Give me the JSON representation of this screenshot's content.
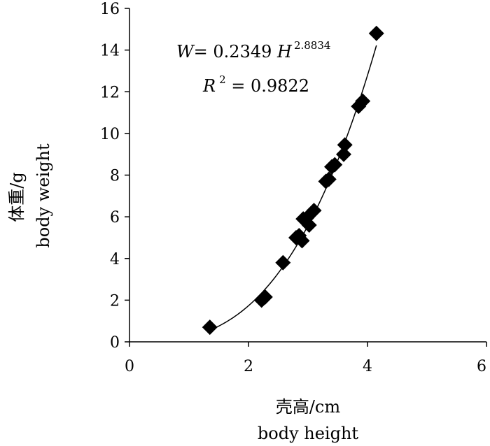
{
  "chart_data": {
    "type": "scatter",
    "xlabel": [
      "壳高/cm",
      "body height"
    ],
    "ylabel": [
      "体重/g",
      "body weight"
    ],
    "xlim": [
      0,
      6
    ],
    "ylim": [
      0,
      16
    ],
    "x_ticks": [
      "0",
      "2",
      "4",
      "6"
    ],
    "y_ticks": [
      "0",
      "2",
      "4",
      "6",
      "8",
      "10",
      "12",
      "14",
      "16"
    ],
    "grid": false,
    "marker": "diamond",
    "marker_color": "#000000",
    "points": [
      {
        "x": 1.35,
        "y": 0.7
      },
      {
        "x": 2.22,
        "y": 2.0
      },
      {
        "x": 2.28,
        "y": 2.15
      },
      {
        "x": 2.58,
        "y": 3.8
      },
      {
        "x": 2.8,
        "y": 5.0
      },
      {
        "x": 2.85,
        "y": 5.1
      },
      {
        "x": 2.9,
        "y": 4.85
      },
      {
        "x": 2.92,
        "y": 5.9
      },
      {
        "x": 2.98,
        "y": 5.95
      },
      {
        "x": 3.02,
        "y": 5.6
      },
      {
        "x": 3.1,
        "y": 6.3
      },
      {
        "x": 3.3,
        "y": 7.7
      },
      {
        "x": 3.35,
        "y": 7.8
      },
      {
        "x": 3.4,
        "y": 8.4
      },
      {
        "x": 3.45,
        "y": 8.5
      },
      {
        "x": 3.6,
        "y": 9.0
      },
      {
        "x": 3.62,
        "y": 9.45
      },
      {
        "x": 3.85,
        "y": 11.3
      },
      {
        "x": 3.92,
        "y": 11.55
      },
      {
        "x": 4.15,
        "y": 14.8
      }
    ],
    "fit": {
      "type": "power",
      "a": 0.2349,
      "b": 2.8834,
      "x_range": [
        1.35,
        4.15
      ],
      "equation_parts": {
        "lhs": "W",
        "eq": "= 0.2349 ",
        "var": "H",
        "exp": "2.8834"
      },
      "r2_parts": {
        "var": "R",
        "exp": "2",
        "rest": " = 0.9822"
      }
    }
  }
}
